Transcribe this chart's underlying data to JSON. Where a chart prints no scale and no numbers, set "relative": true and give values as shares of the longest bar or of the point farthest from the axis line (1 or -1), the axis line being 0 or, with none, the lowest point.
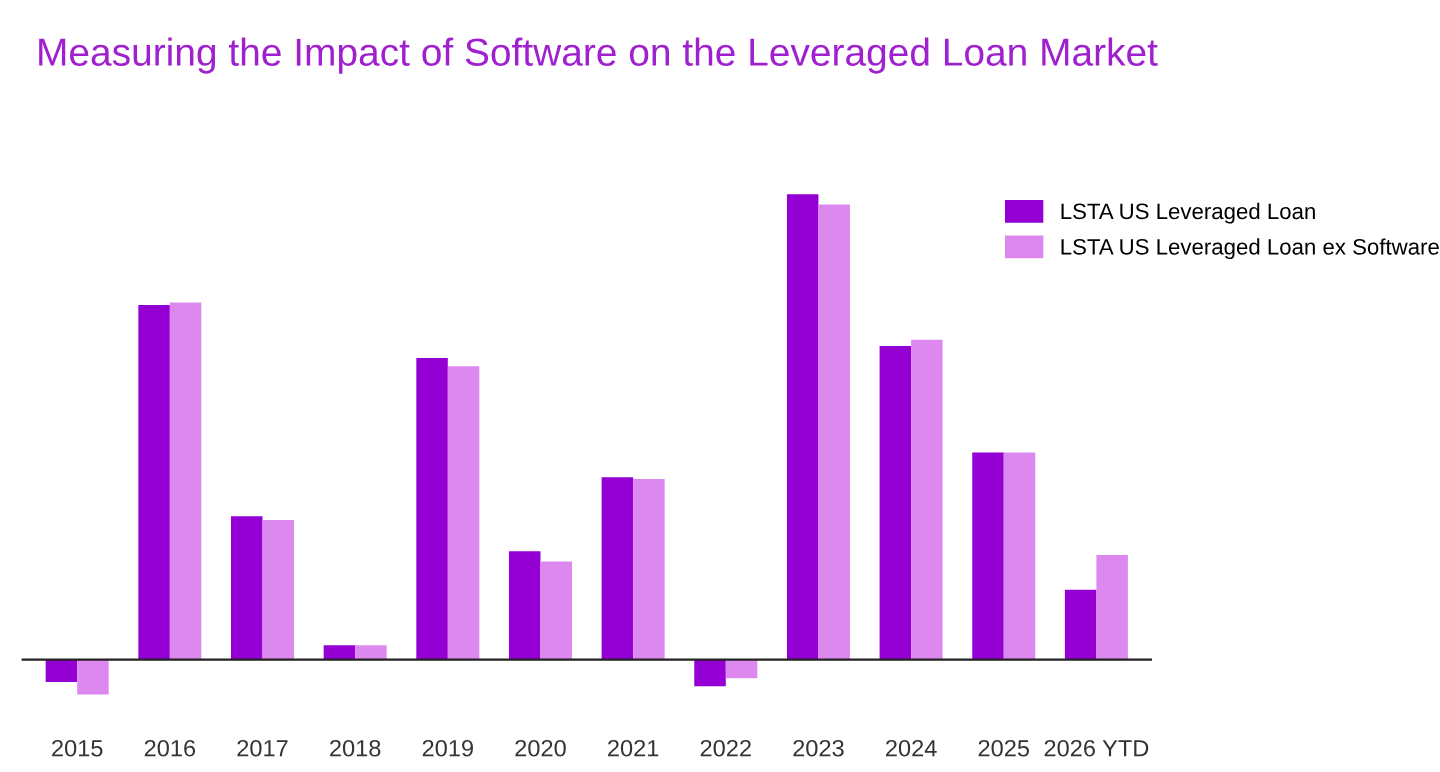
{
  "chart_data": {
    "type": "bar",
    "title": "Measuring the Impact of Software on the Leveraged Loan Market",
    "relative": true,
    "legend": "top right",
    "grid": false,
    "categories": [
      "2015",
      "2016",
      "2017",
      "2018",
      "2019",
      "2020",
      "2021",
      "2022",
      "2023",
      "2024",
      "2025",
      "2026 YTD"
    ],
    "series": [
      {
        "name": "LSTA US Leveraged Loan",
        "color": "#9400d3",
        "values": [
          -0.048,
          0.762,
          0.308,
          0.031,
          0.648,
          0.233,
          0.392,
          -0.057,
          1,
          0.674,
          0.445,
          0.15
        ]
      },
      {
        "name": "LSTA US Leveraged Loan ex Software",
        "color": "#dd88ee",
        "values": [
          -0.075,
          0.767,
          0.3,
          0.031,
          0.63,
          0.211,
          0.388,
          -0.04,
          0.978,
          0.687,
          0.445,
          0.225
        ]
      }
    ]
  }
}
